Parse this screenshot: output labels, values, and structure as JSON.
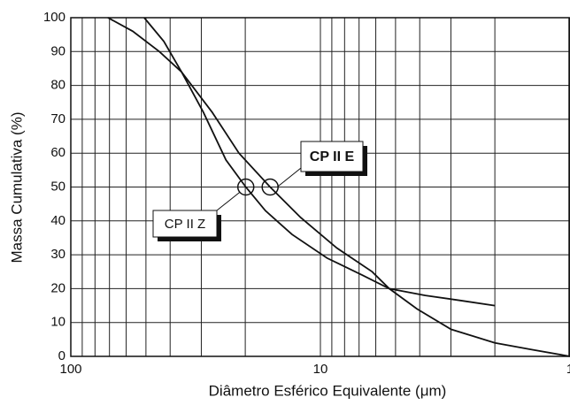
{
  "chart_data": {
    "type": "line",
    "x_label": "Diâmetro Esférico Equivalente (μm)",
    "y_label": "Massa Cumulativa (%)",
    "x_log": true,
    "x_reversed": true,
    "grid": true,
    "xlim": [
      100,
      1
    ],
    "xticks": [
      100,
      10,
      1
    ],
    "xminorticks": [
      90,
      80,
      70,
      60,
      50,
      40,
      30,
      20,
      9,
      8,
      7,
      6,
      5,
      4,
      3,
      2
    ],
    "ylim": [
      0,
      100
    ],
    "yticks": [
      0,
      10,
      20,
      30,
      40,
      50,
      60,
      70,
      80,
      90,
      100
    ],
    "series": [
      {
        "name": "CP II Z",
        "color": "#111111",
        "x": [
          50.8,
          42.4,
          36.0,
          29.4,
          23.9,
          19.9,
          16.6,
          13.0,
          9.4,
          6.8,
          5.3,
          3.8,
          2.75,
          2.0
        ],
        "values": [
          100,
          93,
          84,
          72,
          58,
          50,
          43,
          36,
          29,
          24,
          20,
          18,
          16.5,
          15
        ]
      },
      {
        "name": "CP II E",
        "color": "#111111",
        "x": [
          71,
          56.5,
          44.2,
          36.0,
          27.1,
          21.2,
          15.9,
          12.0,
          8.6,
          6.2,
          5.3,
          4.1,
          3.0,
          2.0,
          1.43,
          1.0
        ],
        "values": [
          100,
          96,
          90,
          84,
          72,
          60,
          50,
          41,
          32,
          25,
          20,
          14,
          8,
          4,
          2,
          0
        ]
      }
    ]
  }
}
